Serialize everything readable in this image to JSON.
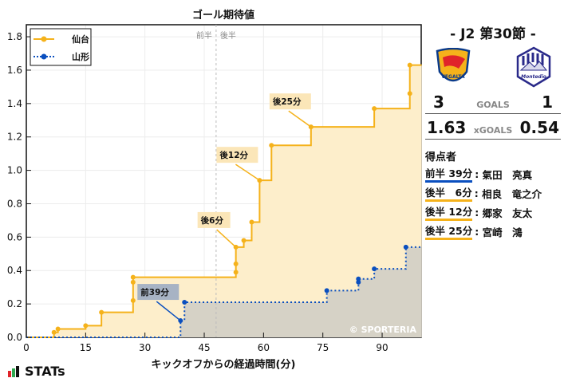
{
  "chart_data": {
    "type": "line",
    "title": "ゴール期待値",
    "xlabel": "キックオフからの経過時間(分)",
    "ylabel": "",
    "xlim": [
      0,
      100
    ],
    "ylim": [
      0,
      1.87
    ],
    "xticks": [
      0,
      15,
      30,
      45,
      60,
      75,
      90
    ],
    "yticks": [
      0.0,
      0.2,
      0.4,
      0.6,
      0.8,
      1.0,
      1.2,
      1.4,
      1.6,
      1.8
    ],
    "grid": true,
    "legend_position": "upper left",
    "halftime_marker": {
      "x": 48,
      "labels": [
        "前半",
        "後半"
      ]
    },
    "series": [
      {
        "name": "仙台",
        "color": "#f5b21b",
        "style": "solid-step",
        "points": [
          [
            0,
            0
          ],
          [
            7,
            0.03
          ],
          [
            8,
            0.05
          ],
          [
            15,
            0.07
          ],
          [
            19,
            0.15
          ],
          [
            27,
            0.22
          ],
          [
            27,
            0.33
          ],
          [
            27,
            0.36
          ],
          [
            53,
            0.39
          ],
          [
            53,
            0.44
          ],
          [
            53,
            0.54
          ],
          [
            55,
            0.58
          ],
          [
            57,
            0.69
          ],
          [
            59,
            0.94
          ],
          [
            62,
            1.15
          ],
          [
            72,
            1.26
          ],
          [
            88,
            1.37
          ],
          [
            97,
            1.46
          ],
          [
            97,
            1.63
          ],
          [
            100,
            1.63
          ]
        ]
      },
      {
        "name": "山形",
        "color": "#0a4fbf",
        "style": "dotted-step",
        "points": [
          [
            0,
            0
          ],
          [
            39,
            0.1
          ],
          [
            40,
            0.21
          ],
          [
            76,
            0.28
          ],
          [
            84,
            0.33
          ],
          [
            84,
            0.35
          ],
          [
            88,
            0.41
          ],
          [
            96,
            0.54
          ],
          [
            100,
            0.54
          ]
        ]
      }
    ],
    "annotations": [
      {
        "text": "前39分",
        "x": 39,
        "y": 0.1,
        "team": "山形"
      },
      {
        "text": "後6分",
        "x": 53,
        "y": 0.54,
        "team": "仙台"
      },
      {
        "text": "後12分",
        "x": 59,
        "y": 0.94,
        "team": "仙台"
      },
      {
        "text": "後25分",
        "x": 72,
        "y": 1.26,
        "team": "仙台"
      }
    ],
    "watermark": "© SPORTERIA"
  },
  "header": {
    "title": "ゴール期待値",
    "round": "- J2 第30節 -"
  },
  "teams": {
    "home": {
      "name": "仙台",
      "goals": "3",
      "xgoals": "1.63",
      "color": "#f5b21b"
    },
    "away": {
      "name": "山形",
      "goals": "1",
      "xgoals": "0.54",
      "color": "#0a4fbf"
    }
  },
  "labels": {
    "goals": "GOALS",
    "xgoals": "xGOALS",
    "scorers": "得点者",
    "brand": "STATs"
  },
  "scorers": [
    {
      "time": "前半 39分",
      "name": "氣田　亮真",
      "team": "away"
    },
    {
      "time": "後半　6分",
      "name": "相良　竜之介",
      "team": "home"
    },
    {
      "time": "後半 12分",
      "name": "郷家　友太",
      "team": "home"
    },
    {
      "time": "後半 25分",
      "name": "宮崎　鴻",
      "team": "home"
    }
  ]
}
